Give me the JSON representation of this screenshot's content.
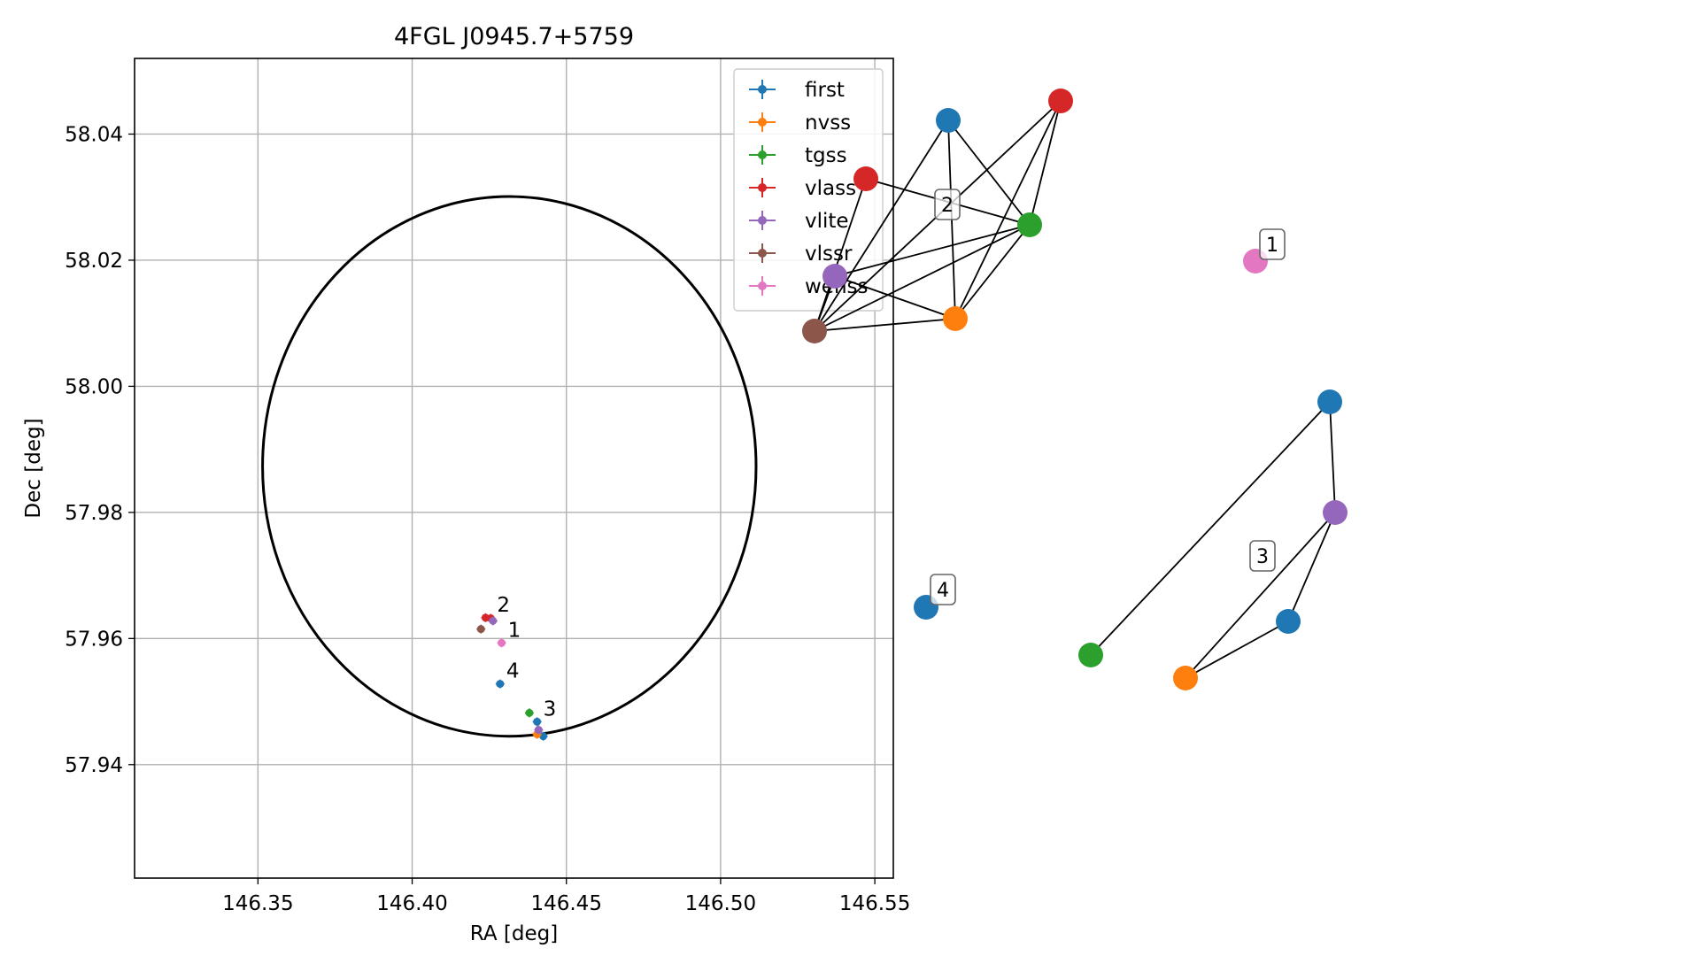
{
  "colors": {
    "first": "#1f77b4",
    "nvss": "#ff7f0e",
    "tgss": "#2ca02c",
    "vlass": "#d62728",
    "vlite": "#9467bd",
    "vlssr": "#8c564b",
    "wenss": "#e377c2"
  },
  "chart_data": [
    {
      "type": "scatter",
      "title": "4FGL J0945.7+5759",
      "xlabel": "RA [deg]",
      "ylabel": "Dec [deg]",
      "xlim": [
        146.31,
        146.556
      ],
      "ylim": [
        57.922,
        58.052
      ],
      "xticks": [
        146.35,
        146.4,
        146.45,
        146.5,
        146.55
      ],
      "xtick_labels": [
        "146.35",
        "146.40",
        "146.45",
        "146.50",
        "146.55"
      ],
      "yticks": [
        57.94,
        57.96,
        57.98,
        58.0,
        58.02,
        58.04
      ],
      "ytick_labels": [
        "57.94",
        "57.96",
        "57.98",
        "58.00",
        "58.02",
        "58.04"
      ],
      "grid": true,
      "legend_position": "top-right",
      "ellipse": {
        "center": [
          146.4315,
          57.9873
        ],
        "semi_axis_ra": 0.08,
        "semi_axis_dec": 0.0428
      },
      "series": [
        {
          "name": "first",
          "points": [
            [
              146.4285,
              57.9528
            ],
            [
              146.4405,
              57.9468
            ],
            [
              146.4425,
              57.9445
            ]
          ]
        },
        {
          "name": "nvss",
          "points": [
            [
              146.4405,
              57.9448
            ]
          ]
        },
        {
          "name": "tgss",
          "points": [
            [
              146.438,
              57.9482
            ]
          ]
        },
        {
          "name": "vlass",
          "points": [
            [
              146.4238,
              57.9633
            ],
            [
              146.4255,
              57.9632
            ]
          ]
        },
        {
          "name": "vlite",
          "points": [
            [
              146.4262,
              57.9628
            ],
            [
              146.441,
              57.9455
            ]
          ]
        },
        {
          "name": "vlssr",
          "points": [
            [
              146.4223,
              57.9615
            ]
          ]
        },
        {
          "name": "wenss",
          "points": [
            [
              146.429,
              57.9593
            ]
          ]
        }
      ],
      "annotations": [
        {
          "text": "2",
          "at": [
            146.4255,
            57.9633
          ]
        },
        {
          "text": "1",
          "at": [
            146.429,
            57.9593
          ]
        },
        {
          "text": "4",
          "at": [
            146.4285,
            57.9528
          ]
        },
        {
          "text": "3",
          "at": [
            146.4405,
            57.9468
          ]
        }
      ]
    },
    {
      "type": "network",
      "nodes": [
        {
          "id": "g2_first",
          "survey": "first",
          "pos": [
            1071,
            136
          ]
        },
        {
          "id": "g2_vlass_a",
          "survey": "vlass",
          "pos": [
            1198,
            114
          ]
        },
        {
          "id": "g2_vlass_b",
          "survey": "vlass",
          "pos": [
            978,
            202
          ]
        },
        {
          "id": "g2_tgss",
          "survey": "tgss",
          "pos": [
            1163,
            254
          ]
        },
        {
          "id": "g2_vlite",
          "survey": "vlite",
          "pos": [
            943,
            312
          ]
        },
        {
          "id": "g2_nvss",
          "survey": "nvss",
          "pos": [
            1079,
            360
          ]
        },
        {
          "id": "g2_vlssr",
          "survey": "vlssr",
          "pos": [
            920,
            374
          ]
        },
        {
          "id": "g1_wenss",
          "survey": "wenss",
          "pos": [
            1418,
            295
          ]
        },
        {
          "id": "g3_first_a",
          "survey": "first",
          "pos": [
            1502,
            454
          ]
        },
        {
          "id": "g3_vlite",
          "survey": "vlite",
          "pos": [
            1508,
            579
          ]
        },
        {
          "id": "g3_first_b",
          "survey": "first",
          "pos": [
            1455,
            702
          ]
        },
        {
          "id": "g3_tgss",
          "survey": "tgss",
          "pos": [
            1232,
            740
          ]
        },
        {
          "id": "g3_nvss",
          "survey": "nvss",
          "pos": [
            1339,
            766
          ]
        },
        {
          "id": "g4_first",
          "survey": "first",
          "pos": [
            1046,
            686
          ]
        }
      ],
      "edges": [
        [
          "g2_first",
          "g2_tgss"
        ],
        [
          "g2_first",
          "g2_nvss"
        ],
        [
          "g2_first",
          "g2_vlssr"
        ],
        [
          "g2_vlass_a",
          "g2_vlssr"
        ],
        [
          "g2_vlass_a",
          "g2_nvss"
        ],
        [
          "g2_vlass_a",
          "g2_tgss"
        ],
        [
          "g2_vlass_b",
          "g2_tgss"
        ],
        [
          "g2_vlass_b",
          "g2_vlssr"
        ],
        [
          "g2_tgss",
          "g2_vlite"
        ],
        [
          "g2_tgss",
          "g2_vlssr"
        ],
        [
          "g2_tgss",
          "g2_nvss"
        ],
        [
          "g2_vlite",
          "g2_nvss"
        ],
        [
          "g2_vlite",
          "g2_vlssr"
        ],
        [
          "g2_nvss",
          "g2_vlssr"
        ],
        [
          "g3_first_a",
          "g3_vlite"
        ],
        [
          "g3_first_a",
          "g3_tgss"
        ],
        [
          "g3_vlite",
          "g3_nvss"
        ],
        [
          "g3_vlite",
          "g3_first_b"
        ],
        [
          "g3_first_b",
          "g3_nvss"
        ]
      ],
      "group_labels": [
        {
          "text": "2",
          "pos": [
            1070,
            231
          ]
        },
        {
          "text": "1",
          "pos": [
            1437,
            276
          ]
        },
        {
          "text": "3",
          "pos": [
            1426,
            628
          ]
        },
        {
          "text": "4",
          "pos": [
            1065,
            666
          ]
        }
      ]
    }
  ]
}
